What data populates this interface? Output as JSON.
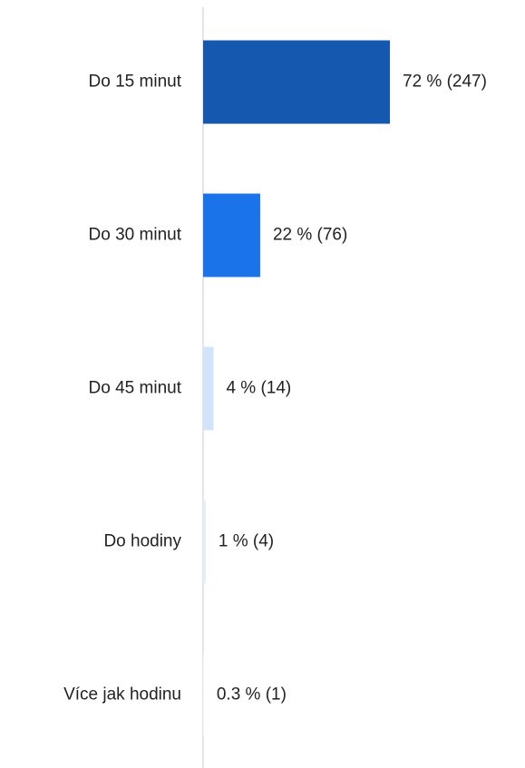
{
  "chart_data": {
    "type": "bar",
    "orientation": "horizontal",
    "categories": [
      "Do 15 minut",
      "Do 30 minut",
      "Do 45 minut",
      "Do hodiny",
      "Více jak hodinu"
    ],
    "values": [
      72,
      22,
      4,
      1,
      0.3
    ],
    "value_labels": [
      "72 % (247)",
      "22 % (76)",
      "4 % (14)",
      "1 % (4)",
      "0.3 % (1)"
    ],
    "colors": [
      "#1558b0",
      "#1a73e8",
      "#d2e3fc",
      "#e3eefc",
      "#eef4fd"
    ]
  }
}
